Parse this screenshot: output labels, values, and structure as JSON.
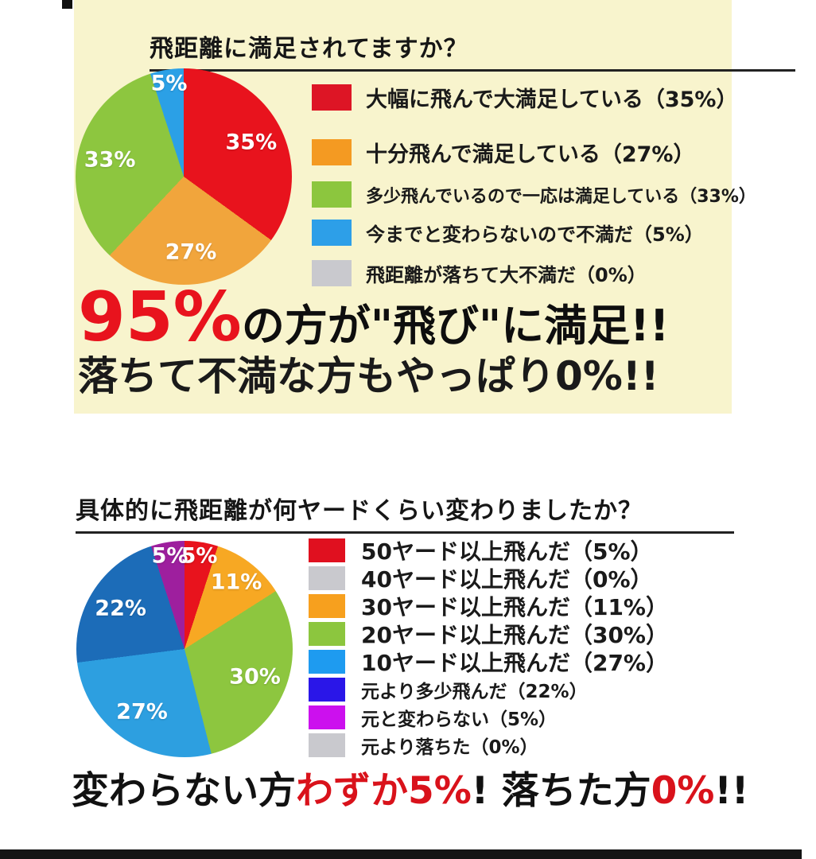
{
  "page": {
    "background": "#ffffff",
    "panel_background": "#F8F4CD",
    "accent_red": "#E8131D",
    "bottom_bar_color": "#141414"
  },
  "section1": {
    "title": "飛距離に満足されてますか？",
    "headline_line1": [
      {
        "text": "95%",
        "color": "#E8131D",
        "em": true
      },
      {
        "text": "の方が\"飛び\"に満足!!",
        "color": "#0e0e0e"
      }
    ],
    "headline_line2": "落ちて不満な方もやっぱり0%!!"
  },
  "section2": {
    "title": "具体的に飛距離が何ヤードくらい変わりましたか？",
    "headline_parts": [
      {
        "text": "変わらない方",
        "color": "#111111"
      },
      {
        "text": "わずか5%",
        "color": "#D9121B"
      },
      {
        "text": "! ",
        "color": "#111111"
      },
      {
        "text": "落ちた方",
        "color": "#111111"
      },
      {
        "text": "0%",
        "color": "#D9121B"
      },
      {
        "text": "!!",
        "color": "#111111"
      }
    ]
  },
  "chart_data": [
    {
      "type": "pie",
      "title": "飛距離に満足されてますか？",
      "categories": [
        "大幅に飛んで大満足している",
        "十分飛んで満足している",
        "多少飛んでいるので一応は満足している",
        "今までと変わらないので不満だ",
        "飛距離が落ちて大不満だ"
      ],
      "values": [
        35,
        27,
        33,
        5,
        0
      ],
      "slice_labels": [
        "35%",
        "27%",
        "33%",
        "5%",
        ""
      ],
      "colors": [
        "#E8131D",
        "#F1A53C",
        "#8DC63F",
        "#2BA0E6",
        "#C9C9CE"
      ],
      "legend_colors": [
        "#DD1525",
        "#F49A22",
        "#8CC63E",
        "#2D9FE8",
        "#C9C9CE"
      ],
      "legend_labels": [
        "大幅に飛んで大満足している（35%）",
        "十分飛んで満足している（27%）",
        "多少飛んでいるので一応は満足している（33%）",
        "今までと変わらないので不満だ（5%）",
        "飛距離が落ちて大不満だ（0%）"
      ],
      "legend_position": "right",
      "start_angle_deg": 0,
      "direction": "clockwise"
    },
    {
      "type": "pie",
      "title": "具体的に飛距離が何ヤードくらい変わりましたか？",
      "categories": [
        "50ヤード以上飛んだ",
        "40ヤード以上飛んだ",
        "30ヤード以上飛んだ",
        "20ヤード以上飛んだ",
        "10ヤード以上飛んだ",
        "元より多少飛んだ",
        "元と変わらない",
        "元より落ちた"
      ],
      "values": [
        5,
        0,
        11,
        30,
        27,
        22,
        5,
        0
      ],
      "slice_labels": [
        "5%",
        "",
        "11%",
        "30%",
        "27%",
        "22%",
        "5%",
        ""
      ],
      "colors": [
        "#E8131D",
        "#C9C9CE",
        "#F7A823",
        "#8DC63F",
        "#2D9FE0",
        "#1C6CB8",
        "#9E1F9E",
        "#C9C9CE"
      ],
      "legend_colors": [
        "#E0101F",
        "#C9C9CE",
        "#F7A01E",
        "#8CC63E",
        "#1E9BF0",
        "#2A16E8",
        "#CC10EE",
        "#C9C9CE"
      ],
      "legend_labels": [
        "50ヤード以上飛んだ（5%）",
        "40ヤード以上飛んだ（0%）",
        "30ヤード以上飛んだ（11%）",
        "20ヤード以上飛んだ（30%）",
        "10ヤード以上飛んだ（27%）",
        "元より多少飛んだ（22%）",
        "元と変わらない（5%）",
        "元より落ちた（0%）"
      ],
      "legend_position": "right",
      "start_angle_deg": 0,
      "direction": "clockwise"
    }
  ]
}
